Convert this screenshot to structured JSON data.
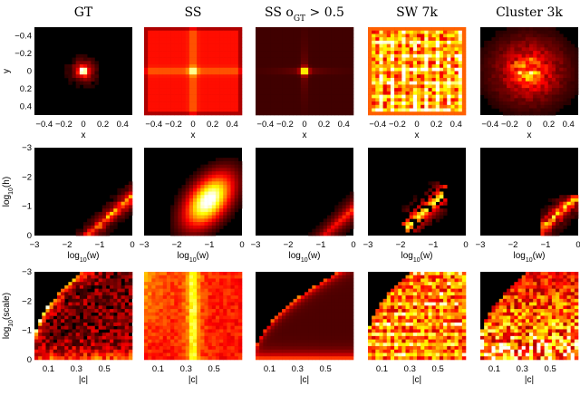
{
  "figure": {
    "columns": [
      {
        "title": "GT"
      },
      {
        "title": "SS"
      },
      {
        "title": "SS o",
        "subscript": "GT",
        "suffix": " > 0.5"
      },
      {
        "title": "SW 7k"
      },
      {
        "title": "Cluster 3k"
      }
    ]
  },
  "chart_data": [
    {
      "type": "heatmap",
      "row": "position",
      "xlabel": "x",
      "ylabel": "y",
      "x_ticks": [
        "−0.4",
        "−0.2",
        "0",
        "0.2",
        "0.4"
      ],
      "y_ticks": [
        "−0.4",
        "−0.2",
        "0",
        "0.2",
        "0.4"
      ],
      "xlim": [
        -0.5,
        0.5
      ],
      "ylim": [
        -0.5,
        0.5
      ],
      "colormap": "hot",
      "panels": [
        "GT",
        "SS",
        "SS oGT > 0.5",
        "SW 7k",
        "Cluster 3k"
      ]
    },
    {
      "type": "heatmap",
      "row": "size",
      "xlabel": "log",
      "xlabel_sub": "10",
      "xlabel_arg": "(w)",
      "ylabel": "log",
      "ylabel_sub": "10",
      "ylabel_arg": "(h)",
      "x_ticks": [
        "−3",
        "−2",
        "−1",
        "0"
      ],
      "y_ticks": [
        "−3",
        "−2",
        "−1",
        "0"
      ],
      "xlim": [
        -3,
        0
      ],
      "ylim": [
        -3,
        0
      ],
      "colormap": "hot",
      "panels": [
        "GT",
        "SS",
        "SS oGT > 0.5",
        "SW 7k",
        "Cluster 3k"
      ]
    },
    {
      "type": "heatmap",
      "row": "scale-vs-offset",
      "xlabel": "|c|",
      "ylabel": "log",
      "ylabel_sub": "10",
      "ylabel_arg": "(scale)",
      "x_ticks": [
        "0.1",
        "0.3",
        "0.5"
      ],
      "y_ticks": [
        "−3",
        "−2",
        "−1",
        "0"
      ],
      "xlim": [
        0,
        0.7
      ],
      "ylim": [
        -3,
        0
      ],
      "colormap": "hot",
      "panels": [
        "GT",
        "SS",
        "SS oGT > 0.5",
        "SW 7k",
        "Cluster 3k"
      ]
    }
  ]
}
